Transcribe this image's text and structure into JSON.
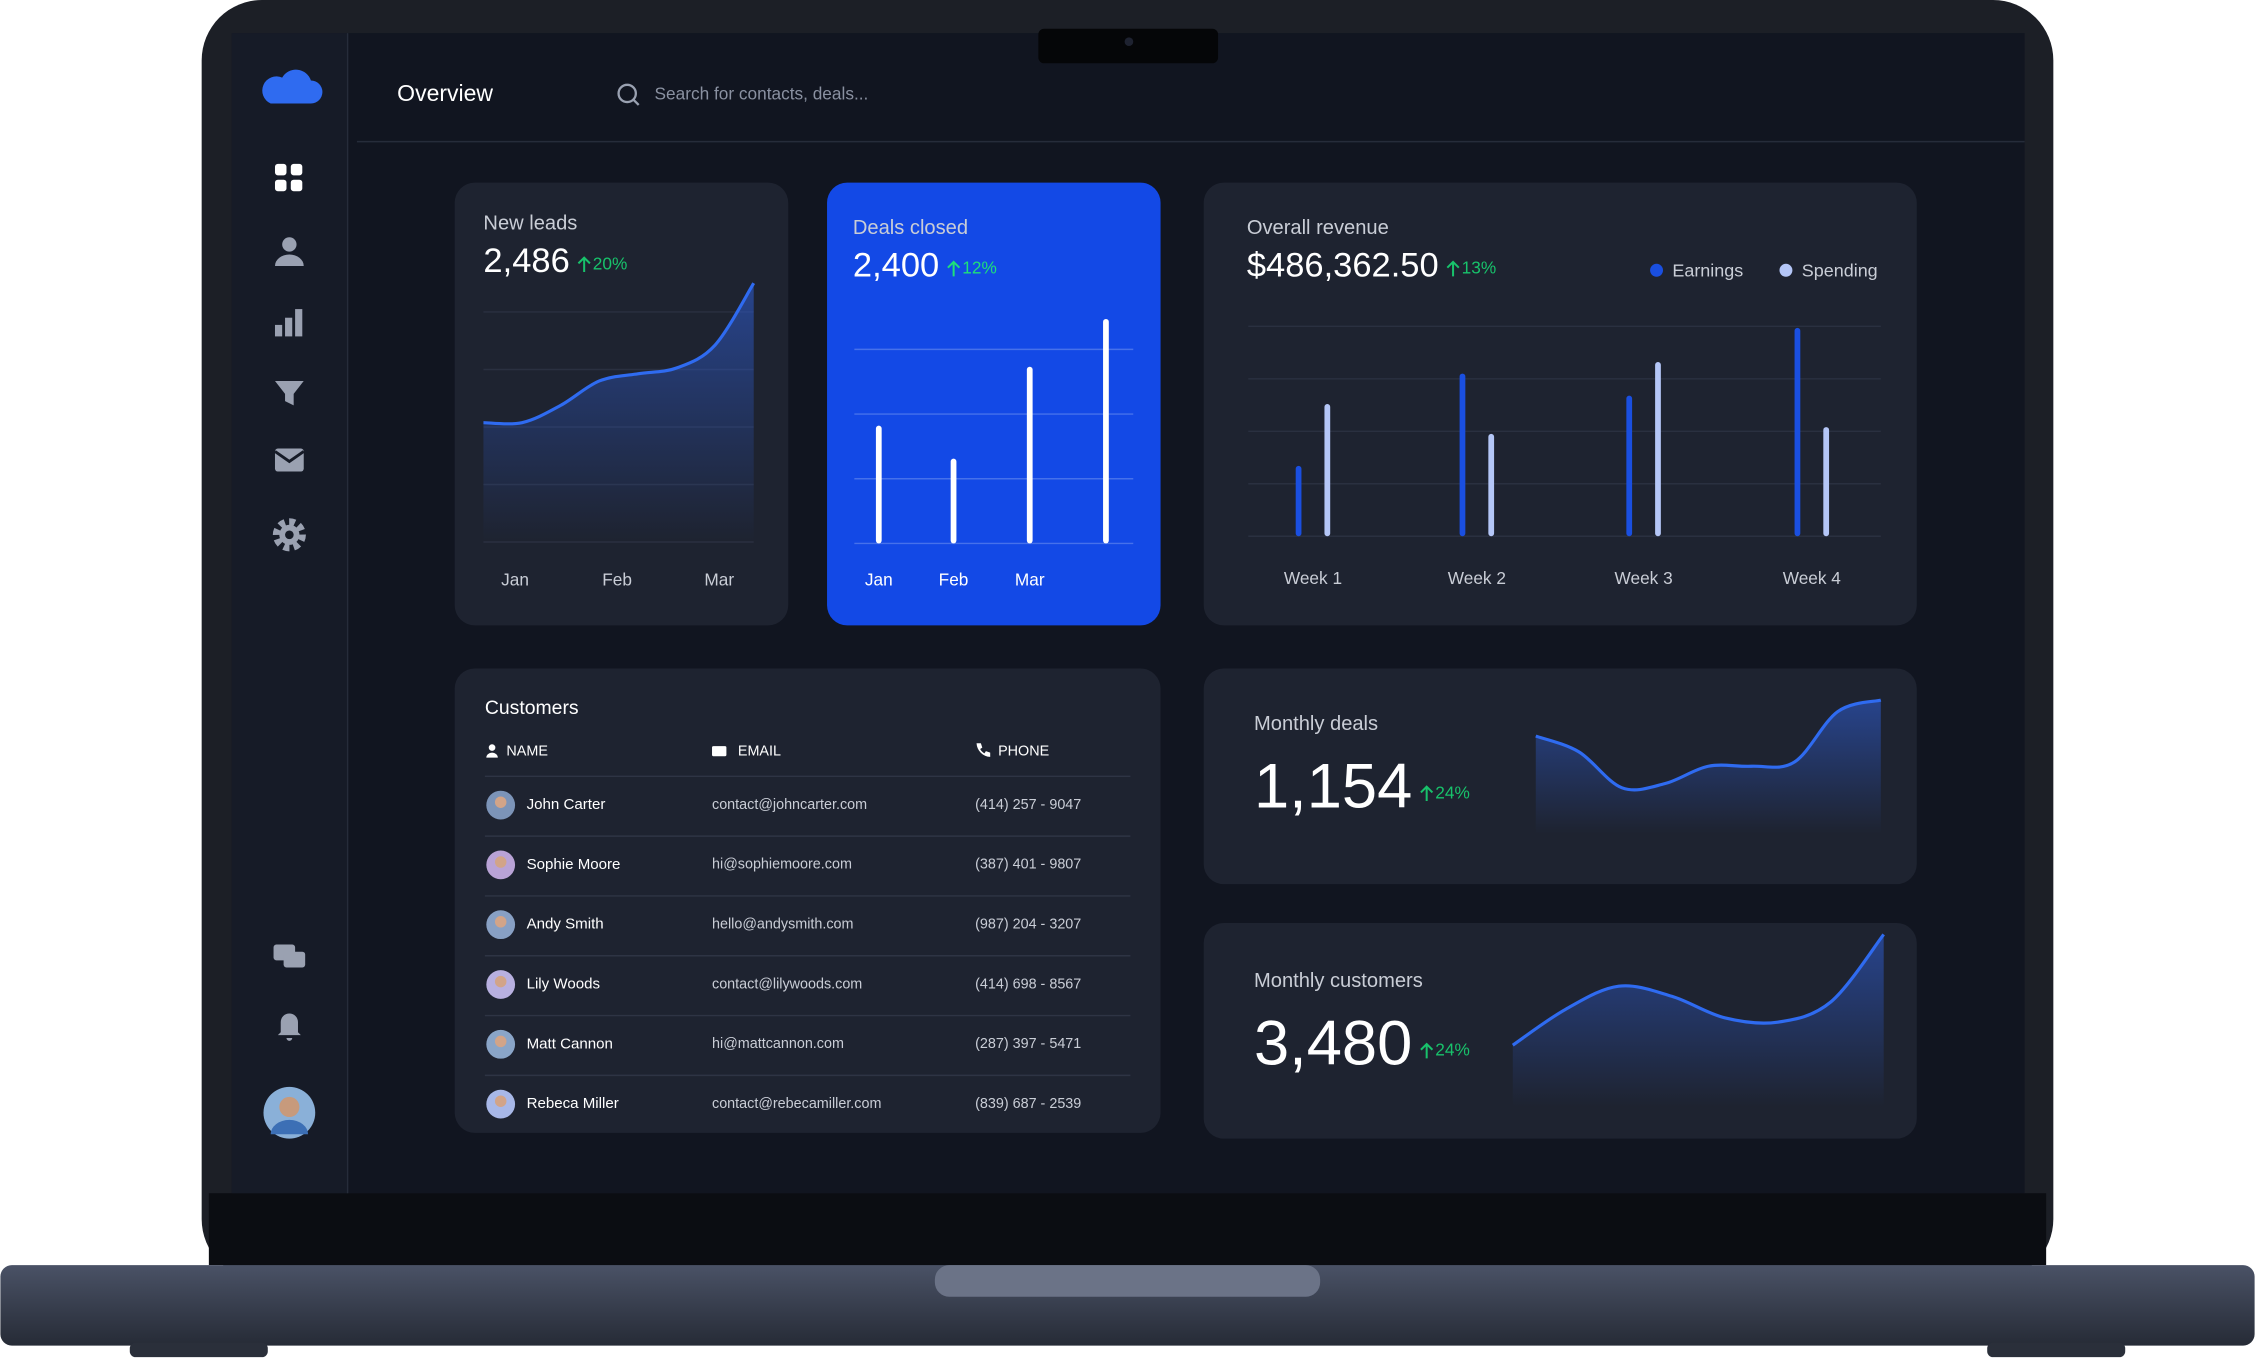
{
  "header": {
    "title": "Overview",
    "search_placeholder": "Search for contacts, deals..."
  },
  "cards": {
    "new_leads": {
      "type": "area",
      "title": "New leads",
      "value": "2,486",
      "change": "20%",
      "categories": [
        "Jan",
        "Feb",
        "Mar"
      ],
      "values": [
        83,
        83,
        95,
        112,
        117,
        121,
        137,
        180
      ],
      "ylim": [
        0,
        180
      ],
      "color": "#2f6bf0"
    },
    "deals_closed": {
      "type": "bar",
      "title": "Deals closed",
      "value": "2,400",
      "change": "12%",
      "categories": [
        "Jan",
        "Feb",
        "Mar",
        null
      ],
      "values": [
        1.82,
        1.31,
        2.73,
        3.47
      ],
      "ylim": [
        0,
        3.5
      ],
      "yticks": [
        0,
        1,
        2,
        3
      ],
      "color": "#ffffff"
    },
    "overall_revenue": {
      "type": "grouped_bar",
      "title": "Overall revenue",
      "value": "$486,362.50",
      "change": "13%",
      "categories": [
        "Week 1",
        "Week 2",
        "Week 3",
        "Week 4"
      ],
      "series": [
        {
          "name": "Earnings",
          "color": "#1a4fe0",
          "values": [
            1.34,
            3.1,
            2.68,
            3.97
          ]
        },
        {
          "name": "Spending",
          "color": "#b4c6f7",
          "values": [
            2.52,
            1.95,
            3.32,
            2.08
          ]
        }
      ],
      "ylim": [
        0,
        4
      ],
      "yticks": [
        0,
        1,
        2,
        3,
        4
      ]
    },
    "monthly_deals": {
      "type": "area",
      "title": "Monthly deals",
      "value": "1,154",
      "change": "24%",
      "values": [
        68,
        57,
        32,
        35,
        47,
        47,
        50,
        85,
        93
      ],
      "ylim": [
        0,
        100
      ],
      "color": "#2f6bf0"
    },
    "monthly_customers": {
      "type": "area",
      "title": "Monthly customers",
      "value": "3,480",
      "change": "24%",
      "values": [
        43,
        68,
        84,
        77,
        62,
        59,
        73,
        120
      ],
      "ylim": [
        0,
        130
      ],
      "color": "#2f6bf0"
    }
  },
  "customers": {
    "title": "Customers",
    "columns": [
      "NAME",
      "EMAIL",
      "PHONE"
    ],
    "rows": [
      [
        "John Carter",
        "contact@johncarter.com",
        "(414) 257 - 9047"
      ],
      [
        "Sophie Moore",
        "hi@sophiemoore.com",
        "(387) 401 - 9807"
      ],
      [
        "Andy Smith",
        "hello@andysmith.com",
        "(987) 204 - 3207"
      ],
      [
        "Lily Woods",
        "contact@lilywoods.com",
        "(414) 698 - 8567"
      ],
      [
        "Matt Cannon",
        "hi@mattcannon.com",
        "(287) 397 - 5471"
      ],
      [
        "Rebeca Miller",
        "contact@rebecamiller.com",
        "(839) 687 - 2539"
      ]
    ]
  }
}
